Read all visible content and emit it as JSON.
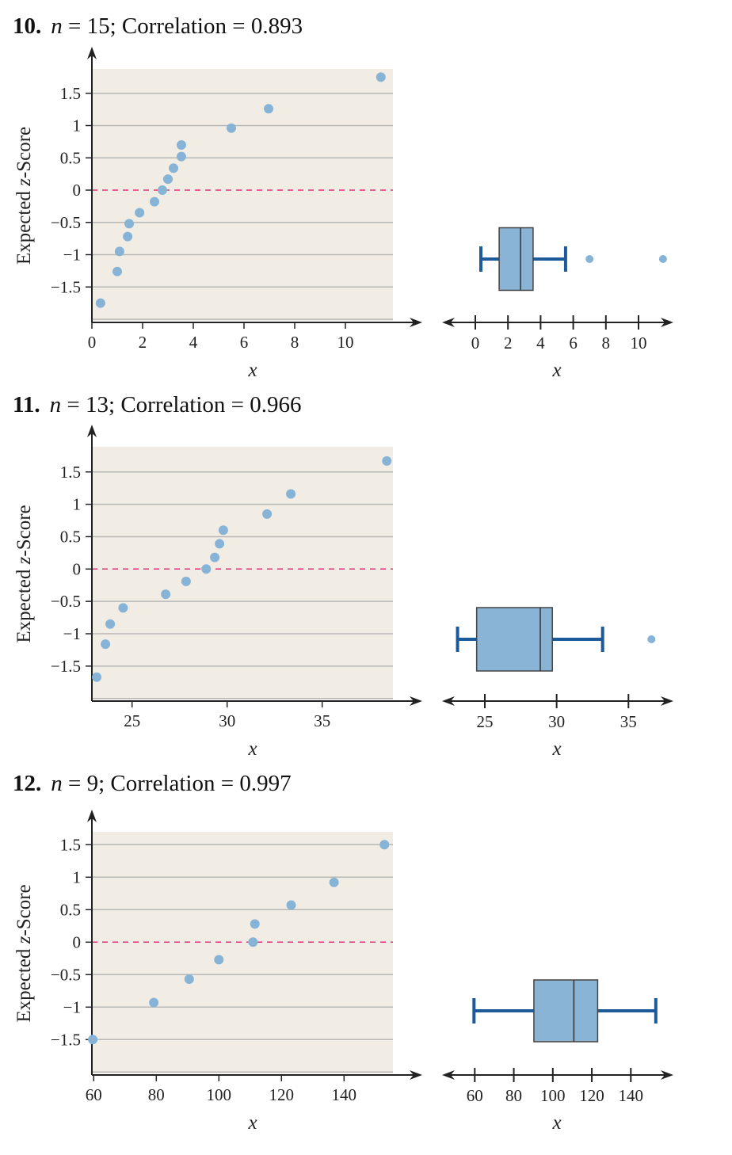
{
  "colors": {
    "plot_background": "#f2ede4",
    "gridline": "#b8b8b8",
    "zero_line": "#e0307a",
    "point": "#86b3d6",
    "box_fill": "#8ab4d6",
    "whisker": "#1d5a99",
    "axis": "#222222"
  },
  "chart_data": [
    {
      "type": "scatter",
      "title": {
        "number": "10.",
        "n": "n",
        "rest": " = 15; Correlation = 0.893"
      },
      "ylabel": {
        "pre": "Expected ",
        "z": "z",
        "post": "-Score"
      },
      "xlabel": "x",
      "x_ticks": [
        "0",
        "2",
        "4",
        "6",
        "8",
        "10"
      ],
      "x_tick_values": [
        0,
        2,
        4,
        6,
        8,
        10
      ],
      "y_ticks": [
        "1.5",
        "1",
        "0.5",
        "0",
        "−0.5",
        "−1",
        "−1.5"
      ],
      "y_tick_values": [
        1.5,
        1,
        0.5,
        0,
        -0.5,
        -1,
        -1.5
      ],
      "grid": true,
      "reference_line": 0,
      "points": [
        {
          "x": 0.34,
          "y": -1.75
        },
        {
          "x": 1.0,
          "y": -1.26
        },
        {
          "x": 1.09,
          "y": -0.95
        },
        {
          "x": 1.41,
          "y": -0.72
        },
        {
          "x": 1.47,
          "y": -0.52
        },
        {
          "x": 1.88,
          "y": -0.35
        },
        {
          "x": 2.47,
          "y": -0.18
        },
        {
          "x": 2.78,
          "y": 0
        },
        {
          "x": 3.0,
          "y": 0.17
        },
        {
          "x": 3.22,
          "y": 0.34
        },
        {
          "x": 3.53,
          "y": 0.52
        },
        {
          "x": 3.53,
          "y": 0.7
        },
        {
          "x": 5.5,
          "y": 0.96
        },
        {
          "x": 6.97,
          "y": 1.26
        },
        {
          "x": 11.4,
          "y": 1.75
        }
      ],
      "boxplot": {
        "min": 0.34,
        "q1": 1.46,
        "median": 2.77,
        "q3": 3.54,
        "max": 5.53,
        "outliers": [
          7.0,
          11.5
        ],
        "x_ticks": [
          "0",
          "2",
          "4",
          "6",
          "8",
          "10"
        ],
        "x_tick_values": [
          0,
          2,
          4,
          6,
          8,
          10
        ],
        "xlabel": "x"
      }
    },
    {
      "type": "scatter",
      "title": {
        "number": "11.",
        "n": "n",
        "rest": " = 13; Correlation = 0.966"
      },
      "ylabel": {
        "pre": "Expected ",
        "z": "z",
        "post": "-Score"
      },
      "xlabel": "x",
      "x_ticks": [
        "25",
        "30",
        "35"
      ],
      "x_tick_values": [
        25,
        30,
        35
      ],
      "y_ticks": [
        "1.5",
        "1",
        "0.5",
        "0",
        "−0.5",
        "−1",
        "−1.5"
      ],
      "y_tick_values": [
        1.5,
        1,
        0.5,
        0,
        -0.5,
        -1,
        -1.5
      ],
      "grid": true,
      "reference_line": 0,
      "points": [
        {
          "x": 23.14,
          "y": -1.67
        },
        {
          "x": 23.6,
          "y": -1.16
        },
        {
          "x": 23.85,
          "y": -0.85
        },
        {
          "x": 24.53,
          "y": -0.6
        },
        {
          "x": 26.77,
          "y": -0.39
        },
        {
          "x": 27.84,
          "y": -0.19
        },
        {
          "x": 28.9,
          "y": 0
        },
        {
          "x": 29.35,
          "y": 0.18
        },
        {
          "x": 29.6,
          "y": 0.39
        },
        {
          "x": 29.8,
          "y": 0.6
        },
        {
          "x": 32.1,
          "y": 0.85
        },
        {
          "x": 33.35,
          "y": 1.16
        },
        {
          "x": 38.4,
          "y": 1.67
        }
      ],
      "boxplot": {
        "min": 23.1,
        "q1": 24.43,
        "median": 28.86,
        "q3": 29.7,
        "max": 33.2,
        "outliers": [
          36.6
        ],
        "x_ticks": [
          "25",
          "30",
          "35"
        ],
        "x_tick_values": [
          25,
          30,
          35
        ],
        "xlabel": "x"
      }
    },
    {
      "type": "scatter",
      "title": {
        "number": "12.",
        "n": "n",
        "rest": " = 9; Correlation = 0.997"
      },
      "ylabel": {
        "pre": "Expected ",
        "z": "z",
        "post": "-Score"
      },
      "xlabel": "x",
      "x_ticks": [
        "60",
        "80",
        "100",
        "120",
        "140"
      ],
      "x_tick_values": [
        60,
        80,
        100,
        120,
        140
      ],
      "y_ticks": [
        "1.5",
        "1",
        "0.5",
        "0",
        "−0.5",
        "−1",
        "−1.5"
      ],
      "y_tick_values": [
        1.5,
        1,
        0.5,
        0,
        -0.5,
        -1,
        -1.5
      ],
      "grid": true,
      "reference_line": 0,
      "points": [
        {
          "x": 59.7,
          "y": -1.5
        },
        {
          "x": 79.2,
          "y": -0.93
        },
        {
          "x": 90.5,
          "y": -0.57
        },
        {
          "x": 100,
          "y": -0.27
        },
        {
          "x": 110.9,
          "y": 0
        },
        {
          "x": 111.5,
          "y": 0.28
        },
        {
          "x": 123.1,
          "y": 0.57
        },
        {
          "x": 136.8,
          "y": 0.92
        },
        {
          "x": 152.9,
          "y": 1.5
        }
      ],
      "boxplot": {
        "min": 59.6,
        "q1": 90.3,
        "median": 110.8,
        "q3": 123,
        "max": 152.8,
        "outliers": [],
        "x_ticks": [
          "60",
          "80",
          "100",
          "120",
          "140"
        ],
        "x_tick_values": [
          60,
          80,
          100,
          120,
          140
        ],
        "xlabel": "x"
      }
    }
  ]
}
